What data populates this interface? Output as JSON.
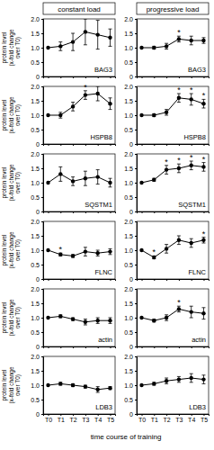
{
  "column_titles": [
    "constant load",
    "progressive load"
  ],
  "x_label": "time course of training",
  "chart_data": [
    {
      "type": "line",
      "title": "BAG3",
      "y_label": [
        "protein level",
        "(x-fold change",
        "over T0)"
      ],
      "categories": [
        "T0",
        "T1",
        "T2",
        "T3",
        "T4",
        "T5"
      ],
      "values": [
        1.0,
        1.05,
        1.2,
        1.55,
        1.45,
        1.35
      ],
      "errors": [
        0,
        0.15,
        0.3,
        0.45,
        0.5,
        0.3
      ],
      "annotations": [],
      "color": "#000000",
      "marker": "circle",
      "ylim": [
        0,
        2
      ],
      "yticks": [
        0,
        0.5,
        {
          "value": 1,
          "label": "1.0"
        },
        1.5,
        {
          "value": 2,
          "label": "2.0"
        }
      ],
      "tick_labels": "y"
    },
    {
      "type": "line",
      "title": "BAG3",
      "categories": [
        "T0",
        "T1",
        "T2",
        "T3",
        "T4",
        "T5"
      ],
      "values": [
        1.0,
        1.0,
        1.05,
        1.3,
        1.25,
        1.25
      ],
      "errors": [
        0,
        0.05,
        0.1,
        0.1,
        0.15,
        0.1
      ],
      "annotations": [
        {
          "x": "T3",
          "text": "*"
        }
      ],
      "color": "#000000",
      "marker": "circle",
      "ylim": [
        0,
        2
      ],
      "yticks": [
        0,
        0.5,
        {
          "value": 1,
          "label": "1.0"
        },
        1.5,
        {
          "value": 2,
          "label": "2.0"
        }
      ],
      "tick_labels": "y"
    },
    {
      "type": "line",
      "title": "HSPB8",
      "y_label": [
        "protein level",
        "(x-fold change",
        "over T0)"
      ],
      "categories": [
        "T0",
        "T1",
        "T2",
        "T3",
        "T4",
        "T5"
      ],
      "values": [
        1.0,
        1.0,
        1.3,
        1.7,
        1.75,
        1.4
      ],
      "errors": [
        0,
        0.1,
        0.15,
        0.15,
        0.25,
        0.2
      ],
      "annotations": [
        {
          "x": "T3",
          "text": "*"
        }
      ],
      "color": "#000000",
      "marker": "circle",
      "ylim": [
        0,
        2
      ],
      "yticks": [
        0,
        0.5,
        {
          "value": 1,
          "label": "1.0"
        },
        1.5,
        {
          "value": 2,
          "label": "2.0"
        }
      ],
      "tick_labels": "y"
    },
    {
      "type": "line",
      "title": "HSPB8",
      "categories": [
        "T0",
        "T1",
        "T2",
        "T3",
        "T4",
        "T5"
      ],
      "values": [
        1.0,
        1.0,
        1.1,
        1.6,
        1.55,
        1.4
      ],
      "errors": [
        0,
        0.05,
        0.1,
        0.15,
        0.2,
        0.15
      ],
      "annotations": [
        {
          "x": "T3",
          "text": "*"
        },
        {
          "x": "T4",
          "text": "*"
        },
        {
          "x": "T5",
          "text": "*"
        }
      ],
      "color": "#000000",
      "marker": "circle",
      "ylim": [
        0,
        2
      ],
      "yticks": [
        0,
        0.5,
        {
          "value": 1,
          "label": "1.0"
        },
        1.5,
        {
          "value": 2,
          "label": "2.0"
        }
      ],
      "tick_labels": "y"
    },
    {
      "type": "line",
      "title": "SQSTM1",
      "y_label": [
        "protein level",
        "(x-fold change",
        "over T0)"
      ],
      "categories": [
        "T0",
        "T1",
        "T2",
        "T3",
        "T4",
        "T5"
      ],
      "values": [
        1.0,
        1.3,
        1.05,
        1.15,
        1.2,
        1.0
      ],
      "errors": [
        0,
        0.25,
        0.15,
        0.25,
        0.25,
        0.15
      ],
      "annotations": [],
      "color": "#000000",
      "marker": "circle",
      "ylim": [
        0,
        2
      ],
      "yticks": [
        0,
        0.5,
        {
          "value": 1,
          "label": "1.0"
        },
        1.5,
        {
          "value": 2,
          "label": "2.0"
        }
      ],
      "tick_labels": "y"
    },
    {
      "type": "line",
      "title": "SQSTM1",
      "categories": [
        "T0",
        "T1",
        "T2",
        "T3",
        "T4",
        "T5"
      ],
      "values": [
        1.0,
        1.1,
        1.45,
        1.5,
        1.6,
        1.55
      ],
      "errors": [
        0,
        0.05,
        0.15,
        0.15,
        0.15,
        0.15
      ],
      "annotations": [
        {
          "x": "T2",
          "text": "*"
        },
        {
          "x": "T3",
          "text": "*"
        },
        {
          "x": "T4",
          "text": "*"
        },
        {
          "x": "T5",
          "text": "*"
        }
      ],
      "color": "#000000",
      "marker": "circle",
      "ylim": [
        0,
        2
      ],
      "yticks": [
        0,
        0.5,
        {
          "value": 1,
          "label": "1.0"
        },
        1.5,
        {
          "value": 2,
          "label": "2.0"
        }
      ],
      "tick_labels": "y"
    },
    {
      "type": "line",
      "title": "FLNC",
      "y_label": [
        "protein level",
        "(x-fold change",
        "over T0)"
      ],
      "categories": [
        "T0",
        "T1",
        "T2",
        "T3",
        "T4",
        "T5"
      ],
      "values": [
        1.0,
        0.85,
        0.8,
        0.95,
        0.9,
        0.95
      ],
      "errors": [
        0,
        0.05,
        0.05,
        0.15,
        0.1,
        0.1
      ],
      "annotations": [
        {
          "x": "T1",
          "text": "*"
        }
      ],
      "color": "#000000",
      "marker": "circle",
      "ylim": [
        0,
        2
      ],
      "yticks": [
        0,
        0.5,
        {
          "value": 1,
          "label": "1.0"
        },
        1.5,
        {
          "value": 2,
          "label": "2.0"
        }
      ],
      "tick_labels": "y"
    },
    {
      "type": "line",
      "title": "FLNC",
      "categories": [
        "T0",
        "T1",
        "T2",
        "T3",
        "T4",
        "T5"
      ],
      "values": [
        1.0,
        0.75,
        1.05,
        1.35,
        1.25,
        1.35
      ],
      "errors": [
        0,
        0.05,
        0.15,
        0.15,
        0.15,
        0.1
      ],
      "annotations": [
        {
          "x": "T1",
          "text": "*"
        },
        {
          "x": "T5",
          "text": "*"
        }
      ],
      "color": "#000000",
      "marker": "circle",
      "ylim": [
        0,
        2
      ],
      "yticks": [
        0,
        0.5,
        {
          "value": 1,
          "label": "1.0"
        },
        1.5,
        {
          "value": 2,
          "label": "2.0"
        }
      ],
      "tick_labels": "y"
    },
    {
      "type": "line",
      "title": "actin",
      "y_label": [
        "protein level",
        "(x-fold change",
        "over T0)"
      ],
      "categories": [
        "T0",
        "T1",
        "T2",
        "T3",
        "T4",
        "T5"
      ],
      "values": [
        1.0,
        1.05,
        0.95,
        0.85,
        0.9,
        0.9
      ],
      "errors": [
        0,
        0.05,
        0.05,
        0.1,
        0.1,
        0.1
      ],
      "annotations": [],
      "color": "#000000",
      "marker": "circle",
      "ylim": [
        0,
        2
      ],
      "yticks": [
        0,
        0.5,
        {
          "value": 1,
          "label": "1.0"
        },
        1.5,
        {
          "value": 2,
          "label": "2.0"
        }
      ],
      "tick_labels": "y"
    },
    {
      "type": "line",
      "title": "actin",
      "categories": [
        "T0",
        "T1",
        "T2",
        "T3",
        "T4",
        "T5"
      ],
      "values": [
        1.0,
        0.9,
        1.0,
        1.3,
        1.2,
        1.15
      ],
      "errors": [
        0,
        0.05,
        0.1,
        0.1,
        0.2,
        0.2
      ],
      "annotations": [
        {
          "x": "T3",
          "text": "*"
        }
      ],
      "color": "#000000",
      "marker": "circle",
      "ylim": [
        0,
        2
      ],
      "yticks": [
        0,
        0.5,
        {
          "value": 1,
          "label": "1.0"
        },
        1.5,
        {
          "value": 2,
          "label": "2.0"
        }
      ],
      "tick_labels": "y"
    },
    {
      "type": "line",
      "title": "LDB3",
      "y_label": [
        "protein level",
        "(x-fold change",
        "over T0)"
      ],
      "categories": [
        "T0",
        "T1",
        "T2",
        "T3",
        "T4",
        "T5"
      ],
      "values": [
        1.0,
        1.05,
        1.0,
        0.95,
        0.85,
        0.9
      ],
      "errors": [
        0,
        0.05,
        0.05,
        0.05,
        0.1,
        0.05
      ],
      "annotations": [],
      "color": "#000000",
      "marker": "circle",
      "ylim": [
        0,
        2
      ],
      "yticks": [
        0,
        0.5,
        {
          "value": 1,
          "label": "1.0"
        },
        1.5,
        {
          "value": 2,
          "label": "2.0"
        }
      ]
    },
    {
      "type": "line",
      "title": "LDB3",
      "categories": [
        "T0",
        "T1",
        "T2",
        "T3",
        "T4",
        "T5"
      ],
      "values": [
        1.0,
        1.05,
        1.15,
        1.2,
        1.25,
        1.2
      ],
      "errors": [
        0,
        0.05,
        0.1,
        0.1,
        0.15,
        0.15
      ],
      "annotations": [],
      "color": "#000000",
      "marker": "circle",
      "ylim": [
        0,
        2
      ],
      "yticks": [
        0,
        0.5,
        {
          "value": 1,
          "label": "1.0"
        },
        1.5,
        {
          "value": 2,
          "label": "2.0"
        }
      ]
    }
  ]
}
